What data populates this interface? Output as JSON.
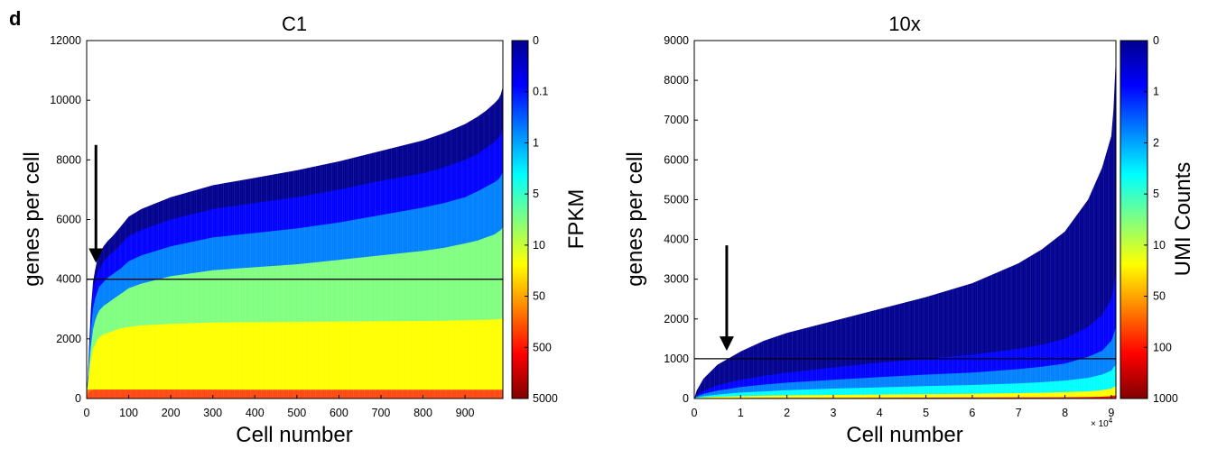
{
  "panel_letter": "d",
  "colors": {
    "axis": "#000000",
    "background": "#ffffff"
  },
  "chart_data": [
    {
      "type": "area",
      "title": "C1",
      "xlabel": "Cell number",
      "ylabel": "genes per cell",
      "xlim": [
        0,
        990
      ],
      "ylim": [
        0,
        12000
      ],
      "xticks": [
        0,
        100,
        200,
        300,
        400,
        500,
        600,
        700,
        800,
        900
      ],
      "yticks": [
        0,
        2000,
        4000,
        6000,
        8000,
        10000,
        12000
      ],
      "threshold_line": 4000,
      "arrow_at": {
        "x": 22,
        "y_from": 8500,
        "y_to": 4550
      },
      "curve": {
        "x": [
          0,
          3,
          6,
          10,
          15,
          20,
          25,
          30,
          40,
          50,
          60,
          70,
          80,
          100,
          130,
          200,
          300,
          400,
          500,
          600,
          700,
          800,
          850,
          900,
          930,
          950,
          970,
          980,
          985,
          990
        ],
        "y": [
          200,
          800,
          1800,
          3000,
          3900,
          4300,
          4650,
          4850,
          5100,
          5280,
          5420,
          5580,
          5750,
          6100,
          6350,
          6750,
          7150,
          7400,
          7650,
          7950,
          8300,
          8650,
          8900,
          9200,
          9450,
          9650,
          9900,
          10050,
          10200,
          10450
        ]
      },
      "bands": [
        {
          "name": "0.1",
          "y": [
            180,
            750,
            1700,
            2800,
            3600,
            3950,
            4200,
            4350,
            4580,
            4750,
            4880,
            5000,
            5150,
            5450,
            5650,
            6000,
            6350,
            6550,
            6750,
            7000,
            7300,
            7550,
            7750,
            8000,
            8200,
            8400,
            8600,
            8750,
            8850,
            9050
          ]
        },
        {
          "name": "1",
          "y": [
            160,
            650,
            1450,
            2300,
            3000,
            3350,
            3550,
            3750,
            3900,
            4050,
            4150,
            4250,
            4350,
            4600,
            4800,
            5100,
            5400,
            5550,
            5700,
            5900,
            6150,
            6400,
            6550,
            6750,
            6950,
            7100,
            7250,
            7350,
            7450,
            7600
          ]
        },
        {
          "name": "5",
          "y": [
            140,
            550,
            1150,
            1750,
            2300,
            2600,
            2800,
            2950,
            3100,
            3200,
            3300,
            3400,
            3500,
            3700,
            3850,
            4100,
            4300,
            4400,
            4500,
            4650,
            4800,
            4950,
            5050,
            5200,
            5300,
            5400,
            5500,
            5600,
            5650,
            5750
          ]
        },
        {
          "name": "10",
          "y": [
            120,
            450,
            850,
            1300,
            1650,
            1800,
            1950,
            2050,
            2150,
            2200,
            2250,
            2300,
            2350,
            2400,
            2450,
            2500,
            2550,
            2560,
            2570,
            2580,
            2590,
            2600,
            2610,
            2620,
            2630,
            2640,
            2650,
            2660,
            2670,
            2680
          ]
        },
        {
          "name": "50",
          "y": [
            80,
            150,
            220,
            260,
            290,
            300,
            300,
            300,
            300,
            300,
            300,
            300,
            300,
            300,
            300,
            300,
            290,
            280,
            280,
            280,
            280,
            280,
            280,
            280,
            280,
            280,
            280,
            280,
            280,
            280
          ]
        }
      ],
      "colorbar": {
        "label": "FPKM",
        "tick_labels": [
          "0",
          "0.1",
          "1",
          "5",
          "10",
          "50",
          "500",
          "5000"
        ],
        "colors": [
          "#00008f",
          "#0000ff",
          "#0080ff",
          "#00ffff",
          "#80ff80",
          "#ffff00",
          "#ff8000",
          "#ff0000",
          "#800000"
        ]
      }
    },
    {
      "type": "area",
      "title": "10x",
      "xlabel": "Cell number",
      "ylabel": "genes per cell",
      "xlim": [
        0,
        9.1
      ],
      "x_exponent_label": "× 10",
      "x_exponent": "4",
      "ylim": [
        0,
        9000
      ],
      "xticks": [
        0,
        1,
        2,
        3,
        4,
        5,
        6,
        7,
        8,
        9
      ],
      "yticks": [
        0,
        1000,
        2000,
        3000,
        4000,
        5000,
        6000,
        7000,
        8000,
        9000
      ],
      "threshold_line": 1000,
      "arrow_at": {
        "x": 0.7,
        "y_from": 3850,
        "y_to": 1200
      },
      "curve": {
        "x": [
          0,
          0.05,
          0.2,
          0.5,
          0.8,
          1.0,
          1.5,
          2.0,
          3.0,
          4.0,
          5.0,
          6.0,
          7.0,
          7.5,
          8.0,
          8.5,
          8.8,
          9.0,
          9.05,
          9.1
        ],
        "y": [
          0,
          200,
          500,
          850,
          1050,
          1180,
          1450,
          1650,
          1950,
          2250,
          2550,
          2900,
          3400,
          3750,
          4200,
          5000,
          5800,
          6600,
          7300,
          8600
        ]
      },
      "bands": [
        {
          "name": "1",
          "y": [
            0,
            80,
            200,
            330,
            420,
            470,
            570,
            650,
            780,
            900,
            1000,
            1100,
            1250,
            1350,
            1500,
            1800,
            2100,
            2500,
            2800,
            3200
          ]
        },
        {
          "name": "2",
          "y": [
            0,
            50,
            120,
            200,
            250,
            290,
            350,
            400,
            470,
            540,
            600,
            650,
            740,
            800,
            880,
            1050,
            1200,
            1450,
            1600,
            1800
          ]
        },
        {
          "name": "5",
          "y": [
            0,
            30,
            60,
            100,
            130,
            150,
            180,
            210,
            250,
            280,
            310,
            340,
            380,
            410,
            450,
            520,
            600,
            700,
            780,
            850
          ]
        },
        {
          "name": "10",
          "y": [
            0,
            15,
            30,
            45,
            55,
            60,
            70,
            80,
            90,
            100,
            110,
            120,
            135,
            145,
            160,
            180,
            210,
            250,
            280,
            310
          ]
        },
        {
          "name": "50",
          "y": [
            0,
            5,
            8,
            10,
            12,
            13,
            15,
            16,
            18,
            20,
            22,
            24,
            27,
            29,
            32,
            36,
            45,
            60,
            70,
            80
          ]
        }
      ],
      "colorbar": {
        "label": "UMI Counts",
        "tick_labels": [
          "0",
          "1",
          "2",
          "5",
          "10",
          "50",
          "100",
          "1000"
        ],
        "colors": [
          "#00008f",
          "#0000ff",
          "#0080ff",
          "#00ffff",
          "#80ff80",
          "#ffff00",
          "#ff8000",
          "#ff0000",
          "#800000"
        ]
      }
    }
  ]
}
